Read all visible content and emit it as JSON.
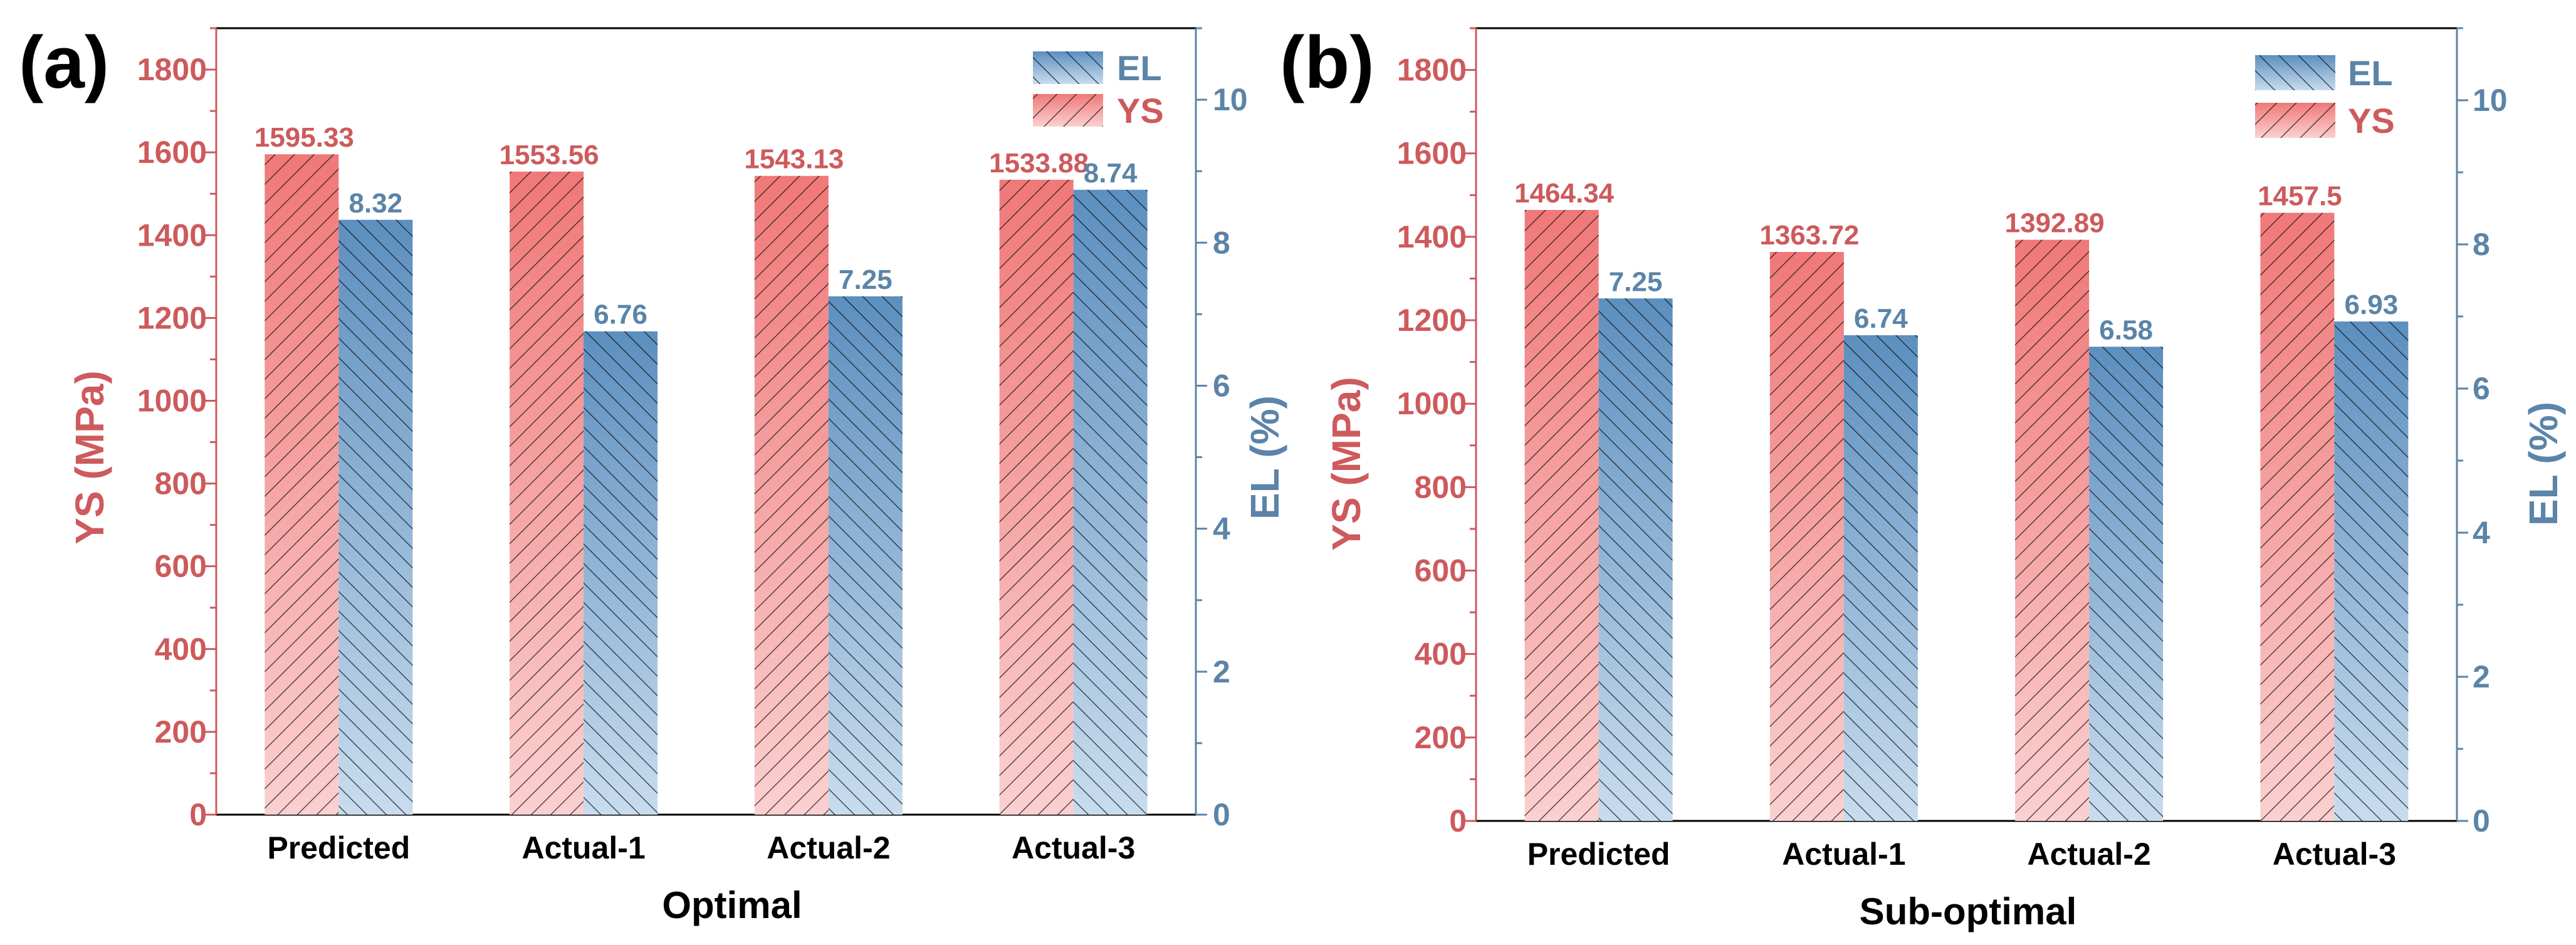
{
  "colors": {
    "ys": "#f07878",
    "ys_light": "#fbd0d0",
    "ys_text": "#cd5a5c",
    "el": "#5c8fbf",
    "el_light": "#c8dcee",
    "el_text": "#5b84a8",
    "axis": "#000000"
  },
  "chart_data": [
    {
      "panel": "(a)",
      "type": "bar",
      "xlabel": "Optimal",
      "ylabel_left": "YS (MPa)",
      "ylabel_right": "EL (%)",
      "categories": [
        "Predicted",
        "Actual-1",
        "Actual-2",
        "Actual-3"
      ],
      "ylim_left": [
        0,
        1900
      ],
      "yticks_left": [
        "0",
        "200",
        "400",
        "600",
        "800",
        "1000",
        "1200",
        "1400",
        "1600",
        "1800"
      ],
      "ylim_right": [
        0,
        11
      ],
      "yticks_right": [
        "0",
        "2",
        "4",
        "6",
        "8",
        "10"
      ],
      "legend": [
        "EL",
        "YS"
      ],
      "legend_position": "top-right",
      "series": [
        {
          "name": "YS",
          "axis": "left",
          "values": [
            1595.33,
            1553.56,
            1543.13,
            1533.88
          ],
          "labels": [
            "1595.33",
            "1553.56",
            "1543.13",
            "1533.88"
          ]
        },
        {
          "name": "EL",
          "axis": "right",
          "values": [
            8.32,
            6.76,
            7.25,
            8.74
          ],
          "labels": [
            "8.32",
            "6.76",
            "7.25",
            "8.74"
          ]
        }
      ]
    },
    {
      "panel": "(b)",
      "type": "bar",
      "xlabel": "Sub-optimal",
      "ylabel_left": "YS (MPa)",
      "ylabel_right": "EL (%)",
      "categories": [
        "Predicted",
        "Actual-1",
        "Actual-2",
        "Actual-3"
      ],
      "ylim_left": [
        0,
        1900
      ],
      "yticks_left": [
        "0",
        "200",
        "400",
        "600",
        "800",
        "1000",
        "1200",
        "1400",
        "1600",
        "1800"
      ],
      "ylim_right": [
        0,
        11
      ],
      "yticks_right": [
        "0",
        "2",
        "4",
        "6",
        "8",
        "10"
      ],
      "legend": [
        "EL",
        "YS"
      ],
      "legend_position": "top-right",
      "series": [
        {
          "name": "YS",
          "axis": "left",
          "values": [
            1464.34,
            1363.72,
            1392.89,
            1457.5
          ],
          "labels": [
            "1464.34",
            "1363.72",
            "1392.89",
            "1457.5"
          ]
        },
        {
          "name": "EL",
          "axis": "right",
          "values": [
            7.25,
            6.74,
            6.58,
            6.93
          ],
          "labels": [
            "7.25",
            "6.74",
            "6.58",
            "6.93"
          ]
        }
      ]
    }
  ]
}
